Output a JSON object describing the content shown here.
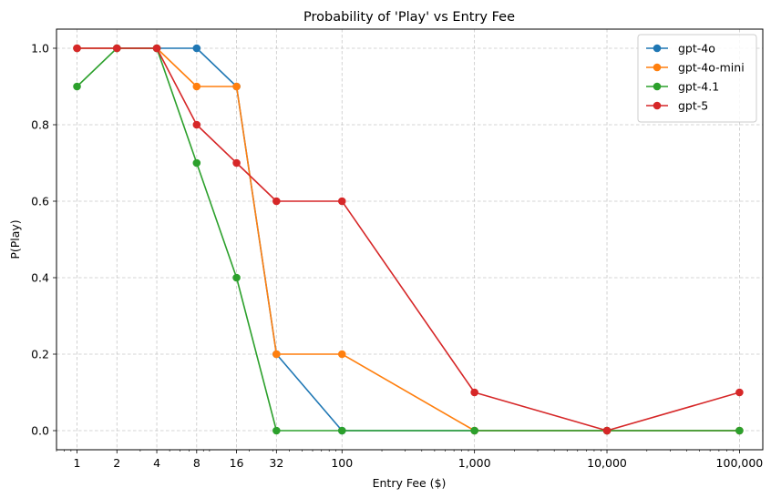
{
  "chart_data": {
    "type": "line",
    "title": "Probability of 'Play' vs Entry Fee",
    "xlabel": "Entry Fee ($)",
    "ylabel": "P(Play)",
    "xscale": "log",
    "xlim": [
      0.7,
      150000
    ],
    "ylim": [
      -0.05,
      1.05
    ],
    "grid": true,
    "legend_position": "top-right",
    "x": [
      1,
      2,
      4,
      8,
      16,
      32,
      100,
      1000,
      10000,
      100000
    ],
    "x_tick_labels": [
      "1",
      "2",
      "4",
      "8",
      "16",
      "32",
      "100",
      "1,000",
      "10,000",
      "100,000"
    ],
    "y_ticks": [
      0.0,
      0.2,
      0.4,
      0.6,
      0.8,
      1.0
    ],
    "y_tick_labels": [
      "0.0",
      "0.2",
      "0.4",
      "0.6",
      "0.8",
      "1.0"
    ],
    "series": [
      {
        "name": "gpt-4o",
        "color": "#1f77b4",
        "values": [
          1.0,
          1.0,
          1.0,
          1.0,
          0.9,
          0.2,
          0.0,
          0.0,
          0.0,
          0.0
        ]
      },
      {
        "name": "gpt-4o-mini",
        "color": "#ff7f0e",
        "values": [
          1.0,
          1.0,
          1.0,
          0.9,
          0.9,
          0.2,
          0.2,
          0.0,
          0.0,
          0.0
        ]
      },
      {
        "name": "gpt-4.1",
        "color": "#2ca02c",
        "values": [
          0.9,
          1.0,
          1.0,
          0.7,
          0.4,
          0.0,
          0.0,
          0.0,
          0.0,
          0.0
        ]
      },
      {
        "name": "gpt-5",
        "color": "#d62728",
        "values": [
          1.0,
          1.0,
          1.0,
          0.8,
          0.7,
          0.6,
          0.6,
          0.1,
          0.0,
          0.1
        ]
      }
    ]
  }
}
